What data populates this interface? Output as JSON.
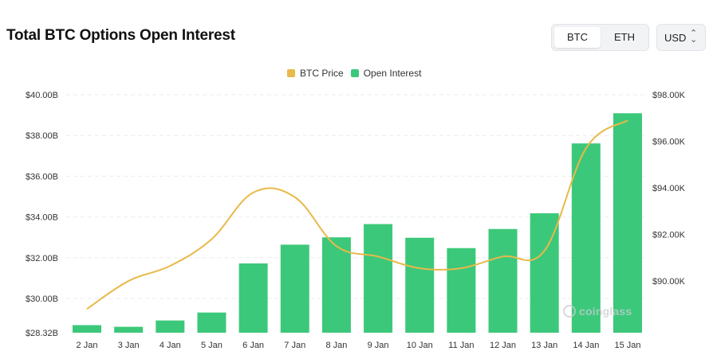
{
  "header": {
    "title": "Total BTC Options Open Interest",
    "asset_tabs": [
      {
        "label": "BTC",
        "active": true
      },
      {
        "label": "ETH",
        "active": false
      }
    ],
    "currency": {
      "label": "USD"
    }
  },
  "watermark": "coinglass",
  "colors": {
    "open_interest": "#3cc87a",
    "btc_price": "#e9b949",
    "grid": "#e9ebee",
    "axis_text": "#333333"
  },
  "chart_data": {
    "type": "bar",
    "title": "Total BTC Options Open Interest",
    "categories": [
      "2 Jan",
      "3 Jan",
      "4 Jan",
      "5 Jan",
      "6 Jan",
      "7 Jan",
      "8 Jan",
      "9 Jan",
      "10 Jan",
      "11 Jan",
      "12 Jan",
      "13 Jan",
      "14 Jan",
      "15 Jan"
    ],
    "series": [
      {
        "name": "Open Interest",
        "type": "bar",
        "axis": "left",
        "values": [
          28.69,
          28.61,
          28.92,
          29.31,
          31.72,
          32.64,
          33.0,
          33.65,
          32.98,
          32.47,
          33.41,
          34.18,
          37.61,
          39.09
        ]
      },
      {
        "name": "BTC Price",
        "type": "line",
        "axis": "right",
        "values": [
          88800,
          90000,
          90650,
          91800,
          93800,
          93600,
          91500,
          91050,
          90550,
          90550,
          91050,
          91300,
          95700,
          96900
        ]
      }
    ],
    "left_axis": {
      "ticks": [
        "$40.00B",
        "$38.00B",
        "$36.00B",
        "$34.00B",
        "$32.00B",
        "$30.00B",
        "$28.32B"
      ],
      "tick_values": [
        40,
        38,
        36,
        34,
        32,
        30,
        28.32
      ],
      "range": [
        28.32,
        40.0
      ]
    },
    "right_axis": {
      "ticks": [
        "$98.00K",
        "$96.00K",
        "$94.00K",
        "$92.00K",
        "$90.00K"
      ],
      "tick_values": [
        98000,
        96000,
        94000,
        92000,
        90000
      ],
      "range": [
        87780,
        98000
      ]
    },
    "grid": true,
    "legend_position": "top-center"
  }
}
